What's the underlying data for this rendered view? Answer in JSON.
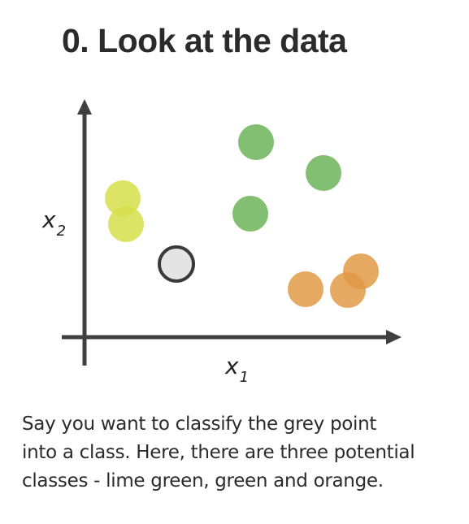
{
  "title": "0. Look at the data",
  "axes": {
    "x_label": "x",
    "x_sub": "1",
    "y_label": "x",
    "y_sub": "2"
  },
  "points": {
    "lime": [
      [
        151,
        244
      ],
      [
        155,
        276
      ]
    ],
    "green": [
      [
        315,
        175
      ],
      [
        398,
        213
      ],
      [
        308,
        263
      ]
    ],
    "orange": [
      [
        376,
        356
      ],
      [
        428,
        357
      ],
      [
        444,
        334
      ]
    ],
    "query": [
      [
        217,
        325
      ]
    ]
  },
  "colors": {
    "lime": "#d6df4a",
    "green": "#6db45a",
    "orange": "#e09a45",
    "query_fill": "#e4e4e4",
    "query_stroke": "#3a3a3a",
    "axis": "#3f3f3f"
  },
  "caption": {
    "line1": "Say you want to classify the grey point",
    "line2": "into a class. Here, there are three potential",
    "line3": "classes - lime green, green and orange."
  }
}
